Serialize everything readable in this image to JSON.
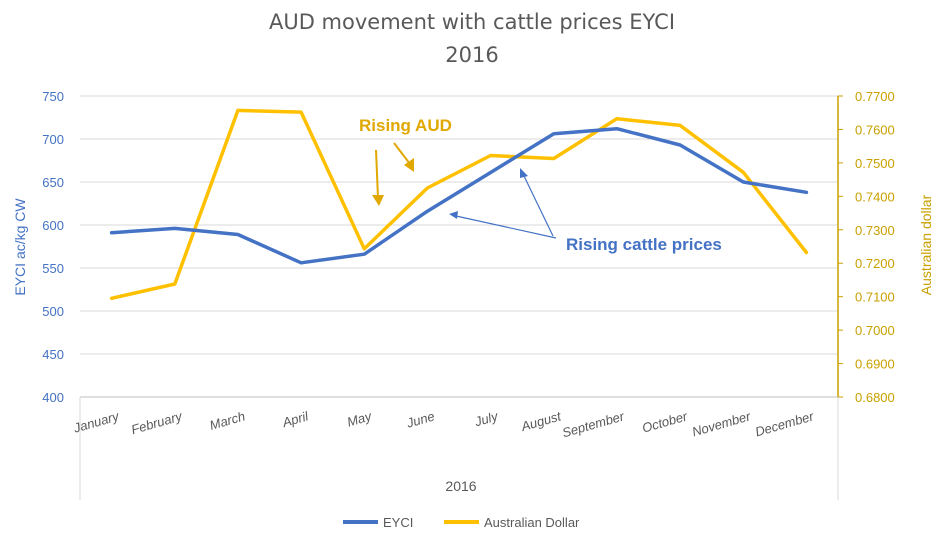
{
  "chart_data": {
    "type": "line",
    "title": "AUD movement with cattle prices EYCI",
    "subtitle": "2016",
    "xlabel": "2016",
    "ylabel_left": "EYCI ac/kg CW",
    "ylabel_right": "Australian dollar",
    "categories": [
      "January",
      "February",
      "March",
      "April",
      "May",
      "June",
      "July",
      "August",
      "September",
      "October",
      "November",
      "December"
    ],
    "y_left_range": [
      400,
      750
    ],
    "y_left_ticks": [
      "400",
      "450",
      "500",
      "550",
      "600",
      "650",
      "700",
      "750"
    ],
    "y_right_range": [
      0.68,
      0.77
    ],
    "y_right_ticks": [
      "0.6800",
      "0.6900",
      "0.7000",
      "0.7100",
      "0.7200",
      "0.7300",
      "0.7400",
      "0.7500",
      "0.7600",
      "0.7700"
    ],
    "grid": true,
    "legend_position": "bottom",
    "series": [
      {
        "name": "EYCI",
        "axis": "left",
        "color": "#4472c4",
        "values": [
          591,
          596,
          589,
          556,
          566,
          616,
          661,
          706,
          712,
          693,
          650,
          638
        ]
      },
      {
        "name": "Australian Dollar",
        "axis": "right",
        "color": "#ffc000",
        "values": [
          0.7095,
          0.7138,
          0.7657,
          0.7652,
          0.7243,
          0.7425,
          0.7522,
          0.7513,
          0.7632,
          0.7612,
          0.7472,
          0.7232
        ]
      }
    ],
    "annotations": [
      "Rising AUD",
      "Rising cattle prices"
    ]
  }
}
